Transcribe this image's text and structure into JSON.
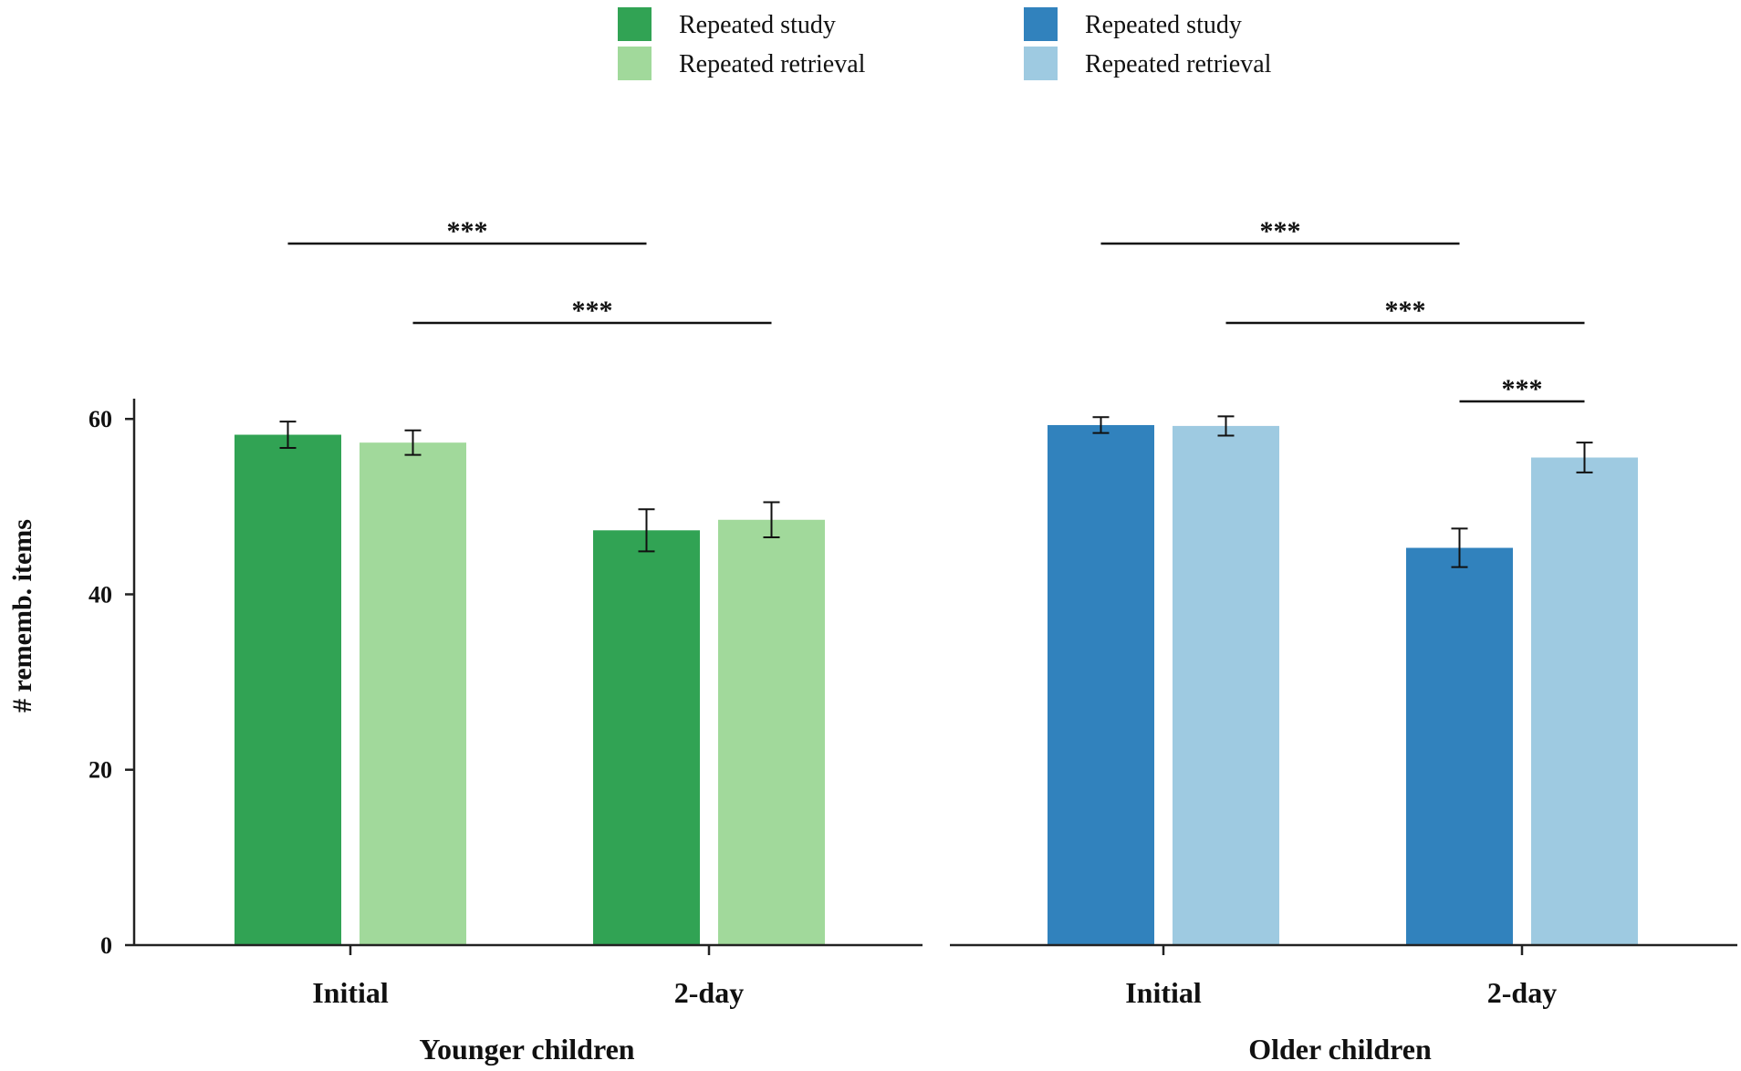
{
  "chart_data": {
    "type": "bar",
    "ylabel": "# rememb. items",
    "ylim": [
      0,
      62
    ],
    "yticks": [
      0,
      20,
      40,
      60
    ],
    "categories": [
      "Initial",
      "2-day"
    ],
    "panels": [
      {
        "title": "Younger children",
        "series": [
          {
            "name": "Repeated study",
            "color": "#31a354",
            "values": [
              58.2,
              47.3
            ],
            "errors": [
              1.5,
              2.4
            ]
          },
          {
            "name": "Repeated retrieval",
            "color": "#a1d99b",
            "values": [
              57.3,
              48.5
            ],
            "errors": [
              1.4,
              2.0
            ]
          }
        ],
        "significance": [
          {
            "label": "***",
            "from": [
              0,
              0
            ],
            "to": [
              1,
              0
            ],
            "level": 1
          },
          {
            "label": "***",
            "from": [
              0,
              1
            ],
            "to": [
              1,
              1
            ],
            "level": 2
          }
        ]
      },
      {
        "title": "Older children",
        "series": [
          {
            "name": "Repeated study",
            "color": "#3182bd",
            "values": [
              59.3,
              45.3
            ],
            "errors": [
              0.9,
              2.2
            ]
          },
          {
            "name": "Repeated retrieval",
            "color": "#9ecae1",
            "values": [
              59.2,
              55.6
            ],
            "errors": [
              1.1,
              1.7
            ]
          }
        ],
        "significance": [
          {
            "label": "***",
            "from": [
              0,
              0
            ],
            "to": [
              1,
              0
            ],
            "level": 1
          },
          {
            "label": "***",
            "from": [
              0,
              1
            ],
            "to": [
              1,
              1
            ],
            "level": 2
          },
          {
            "label": "***",
            "from": [
              1,
              0
            ],
            "to": [
              1,
              1
            ],
            "level": 3
          }
        ]
      }
    ]
  }
}
